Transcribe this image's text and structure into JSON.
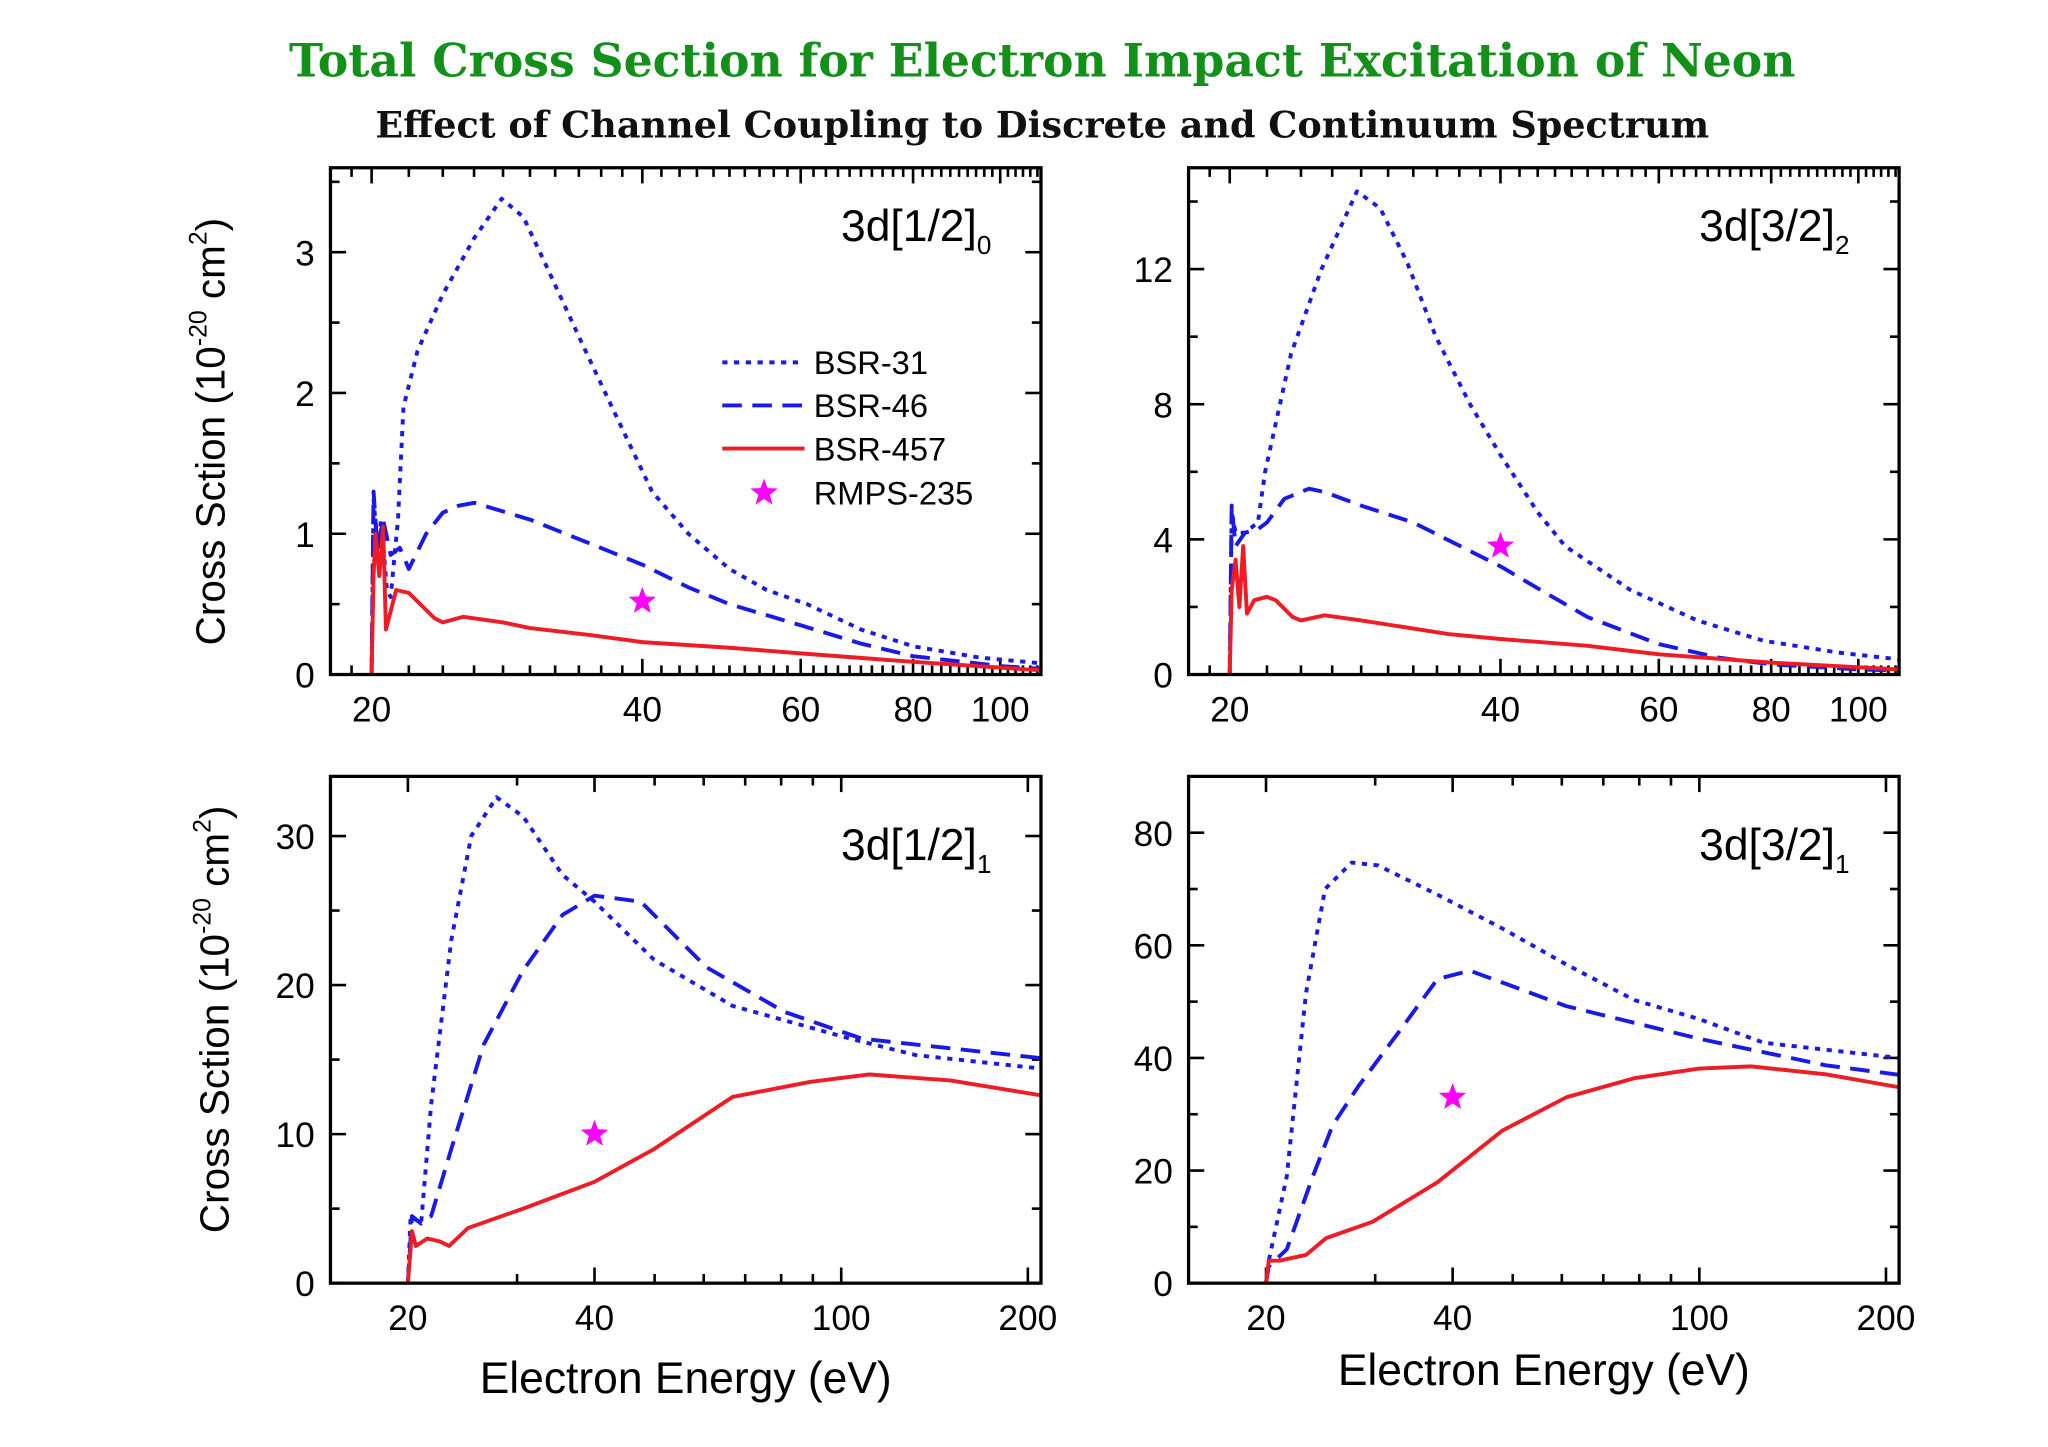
{
  "title": "Total Cross Section for Electron Impact Excitation of Neon",
  "subtitle": "Effect of Channel Coupling to Discrete and Continuum Spectrum",
  "colors": {
    "title": "#12901a",
    "bsr31": "#1a1ae6",
    "bsr46": "#1a1ae6",
    "bsr457": "#ee1c25",
    "rmps": "#ff00ff"
  },
  "ylabel": {
    "main": "Cross Sction (10",
    "exp": "-20",
    "unit": " cm",
    "unit_exp": "2",
    "close": ")"
  },
  "xlabel": "Electron Energy (eV)",
  "legend": [
    {
      "name": "BSR-31",
      "style": "dotted"
    },
    {
      "name": "BSR-46",
      "style": "dashed"
    },
    {
      "name": "BSR-457",
      "style": "solid"
    },
    {
      "name": "RMPS-235",
      "style": "star"
    }
  ],
  "chart_data": [
    {
      "type": "line",
      "panel_label": "3d[1/2]",
      "panel_label_sub": "0",
      "xscale": "log",
      "xlim": [
        18,
        111
      ],
      "ylim": [
        0,
        3.6
      ],
      "xticks": [
        20,
        40,
        60,
        80,
        100
      ],
      "yticks": [
        0,
        1,
        2,
        3
      ],
      "legend": "center-right",
      "series": [
        {
          "name": "BSR-31",
          "x": [
            20,
            20.1,
            20.3,
            20.5,
            20.8,
            21,
            21.4,
            21.7,
            22.5,
            24,
            26,
            27.9,
            29.5,
            31.3,
            34,
            37,
            41,
            45,
            50,
            55,
            61,
            70,
            80,
            95,
            111
          ],
          "y": [
            0,
            1.25,
            0.9,
            1.1,
            0.6,
            0.55,
            1.1,
            1.9,
            2.3,
            2.7,
            3.1,
            3.38,
            3.25,
            2.9,
            2.4,
            1.9,
            1.3,
            1.0,
            0.75,
            0.6,
            0.5,
            0.32,
            0.2,
            0.12,
            0.08
          ]
        },
        {
          "name": "BSR-46",
          "x": [
            20,
            20.1,
            20.3,
            20.6,
            21,
            21.5,
            22,
            23,
            24,
            25,
            26,
            30,
            35,
            40,
            45,
            50,
            60,
            70,
            80,
            100,
            111
          ],
          "y": [
            0,
            1.3,
            0.9,
            1.1,
            0.85,
            0.9,
            0.75,
            1.0,
            1.15,
            1.2,
            1.22,
            1.1,
            0.93,
            0.78,
            0.62,
            0.5,
            0.35,
            0.22,
            0.13,
            0.06,
            0.04
          ]
        },
        {
          "name": "BSR-457",
          "x": [
            20,
            20.1,
            20.2,
            20.4,
            20.6,
            20.75,
            21.3,
            22,
            23.5,
            24,
            25.3,
            28,
            30,
            35,
            40,
            50,
            60,
            80,
            111
          ],
          "y": [
            0,
            0.7,
            1.0,
            0.7,
            1.05,
            0.32,
            0.6,
            0.58,
            0.4,
            0.37,
            0.41,
            0.37,
            0.33,
            0.28,
            0.23,
            0.19,
            0.15,
            0.09,
            0.03
          ]
        },
        {
          "name": "RMPS-235",
          "x": [
            40
          ],
          "y": [
            0.52
          ]
        }
      ]
    },
    {
      "type": "line",
      "panel_label": "3d[3/2]",
      "panel_label_sub": "2",
      "xscale": "log",
      "xlim": [
        18,
        111
      ],
      "ylim": [
        0,
        15
      ],
      "xticks": [
        20,
        40,
        60,
        80,
        100
      ],
      "yticks": [
        0,
        4,
        8,
        12
      ],
      "series": [
        {
          "name": "BSR-31",
          "x": [
            20,
            20.1,
            20.3,
            20.8,
            21.5,
            21.9,
            23.4,
            25.3,
            27.7,
            29.4,
            31.5,
            33.9,
            37,
            40,
            44,
            47.2,
            55.8,
            66.2,
            78.4,
            95,
            111
          ],
          "y": [
            0,
            4.8,
            4.2,
            4.2,
            4.5,
            6,
            9.5,
            12,
            14.3,
            13.8,
            12.2,
            10,
            8,
            6.5,
            4.8,
            3.8,
            2.5,
            1.6,
            1.0,
            0.65,
            0.45
          ]
        },
        {
          "name": "BSR-46",
          "x": [
            20,
            20.1,
            20.3,
            20.8,
            21.5,
            22,
            23,
            24.5,
            25.5,
            28,
            32,
            40,
            45,
            50,
            60,
            70,
            80,
            100,
            111
          ],
          "y": [
            0,
            5.0,
            3.8,
            4.2,
            4.3,
            4.5,
            5.2,
            5.5,
            5.4,
            5.0,
            4.5,
            3.2,
            2.4,
            1.7,
            0.9,
            0.5,
            0.3,
            0.15,
            0.12
          ]
        },
        {
          "name": "BSR-457",
          "x": [
            20,
            20.1,
            20.3,
            20.5,
            20.7,
            20.9,
            21.3,
            22,
            22.5,
            23.5,
            24,
            25.5,
            28,
            35,
            40,
            50,
            60,
            80,
            111
          ],
          "y": [
            0,
            2.5,
            3.4,
            2.0,
            3.8,
            1.8,
            2.2,
            2.3,
            2.2,
            1.7,
            1.6,
            1.75,
            1.6,
            1.2,
            1.05,
            0.85,
            0.6,
            0.35,
            0.15
          ]
        },
        {
          "name": "RMPS-235",
          "x": [
            40
          ],
          "y": [
            3.8
          ]
        }
      ]
    },
    {
      "type": "line",
      "panel_label": "3d[1/2]",
      "panel_label_sub": "1",
      "xscale": "log",
      "xlim": [
        15,
        210
      ],
      "ylim": [
        0,
        34
      ],
      "xticks": [
        20,
        40,
        100,
        200
      ],
      "yticks": [
        0,
        10,
        20,
        30
      ],
      "series": [
        {
          "name": "BSR-31",
          "x": [
            20,
            20.2,
            21,
            21.8,
            23.5,
            25.3,
            27.8,
            30.7,
            35.5,
            40,
            49.9,
            66.8,
            103.4,
            132,
            210
          ],
          "y": [
            0,
            4.5,
            4,
            12,
            23,
            30,
            32.6,
            31.3,
            27.4,
            25.6,
            21.7,
            18.6,
            16.4,
            15.3,
            14.4
          ]
        },
        {
          "name": "BSR-46",
          "x": [
            20,
            20.3,
            21,
            21.8,
            23.5,
            26.5,
            30.7,
            35.5,
            40,
            47.5,
            60.6,
            81,
            108,
            210
          ],
          "y": [
            0,
            4.5,
            4,
            4.5,
            9,
            16,
            21,
            24.7,
            26,
            25.6,
            21.2,
            18.2,
            16.4,
            15.1
          ]
        },
        {
          "name": "BSR-457",
          "x": [
            20,
            20.3,
            20.6,
            21.5,
            22.5,
            23.3,
            24,
            25,
            30.7,
            40,
            49.9,
            66.8,
            89,
            111,
            150,
            210
          ],
          "y": [
            0,
            3.5,
            2.5,
            3,
            2.8,
            2.5,
            3,
            3.7,
            5,
            6.8,
            9,
            12.5,
            13.5,
            14.0,
            13.6,
            12.6
          ]
        },
        {
          "name": "RMPS-235",
          "x": [
            40
          ],
          "y": [
            10
          ]
        }
      ]
    },
    {
      "type": "line",
      "panel_label": "3d[3/2]",
      "panel_label_sub": "1",
      "xscale": "log",
      "xlim": [
        15,
        210
      ],
      "ylim": [
        0,
        90
      ],
      "xticks": [
        20,
        40,
        100,
        200
      ],
      "yticks": [
        0,
        20,
        40,
        60,
        80
      ],
      "series": [
        {
          "name": "BSR-31",
          "x": [
            20,
            20.2,
            21.6,
            23.2,
            24.9,
            27.5,
            30.3,
            37.8,
            48.1,
            61,
            78.5,
            99.9,
            127,
            210
          ],
          "y": [
            0,
            4,
            19,
            51.5,
            70,
            74.7,
            74.2,
            69,
            63,
            56.6,
            50.3,
            46.9,
            42.7,
            40
          ]
        },
        {
          "name": "BSR-46",
          "x": [
            20,
            20.2,
            21.6,
            23.8,
            25.6,
            28.2,
            32.7,
            37.8,
            42.6,
            48.1,
            61,
            100,
            160,
            210
          ],
          "y": [
            0,
            3,
            6,
            19,
            28,
            35,
            44.5,
            54,
            55.5,
            53.4,
            49.2,
            43.4,
            38.7,
            37
          ]
        },
        {
          "name": "BSR-457",
          "x": [
            20,
            20.2,
            21,
            23.2,
            25,
            29.7,
            37.8,
            48.1,
            61,
            78.5,
            99.9,
            121,
            160,
            210
          ],
          "y": [
            0,
            4,
            4,
            5,
            8,
            10.9,
            17.9,
            27.1,
            33,
            36.4,
            38.1,
            38.5,
            37.1,
            34.8
          ]
        },
        {
          "name": "RMPS-235",
          "x": [
            40
          ],
          "y": [
            33
          ]
        }
      ]
    }
  ]
}
